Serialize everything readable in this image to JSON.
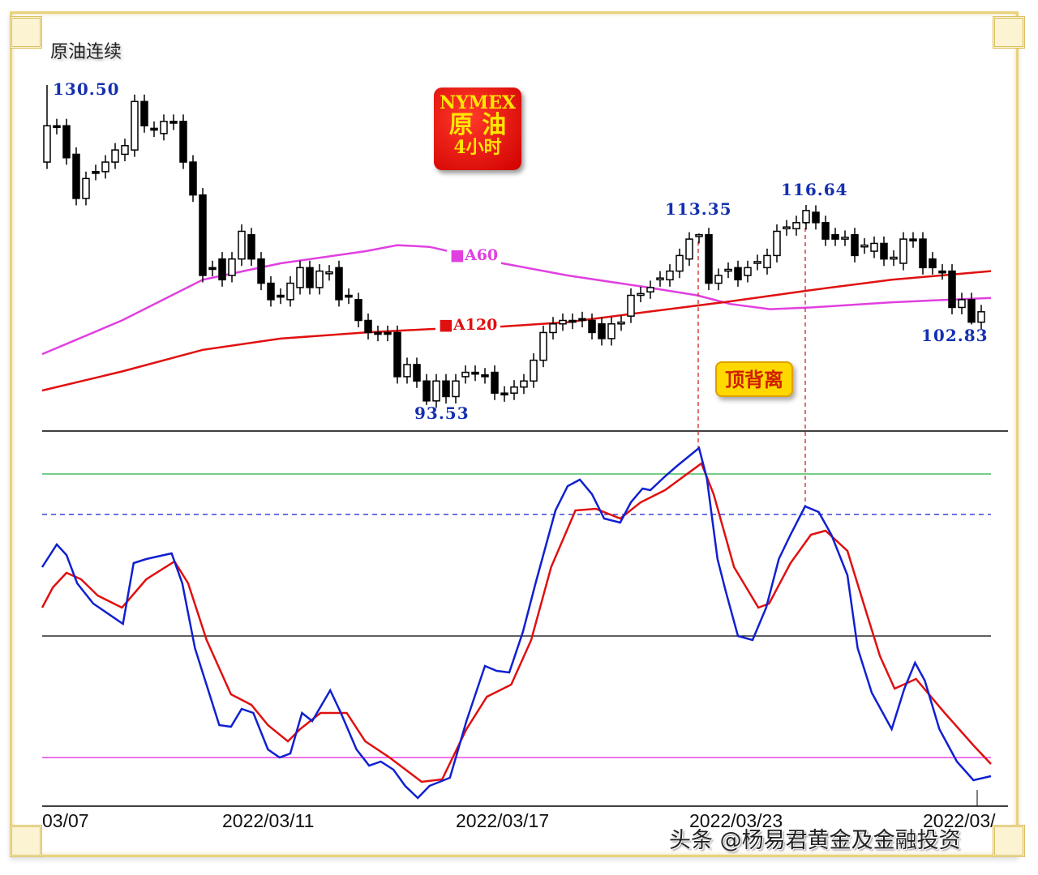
{
  "title": "原油连续",
  "badge": {
    "line1": "NYMEX",
    "line2": "原 油",
    "line3": "4小时",
    "color": "#e00000"
  },
  "annotation": "顶背离",
  "watermark": "头条 @杨易君黄金及金融投资",
  "colors": {
    "ma60": "#e040e0",
    "ma120": "#e01010",
    "fast": "#1020d0",
    "slow": "#e01010",
    "level90": "#20b040",
    "level80": "#1020d0",
    "level50": "#000000",
    "level20": "#e020e0",
    "divergence": "#d02020"
  },
  "chart_data": [
    {
      "type": "candlestick",
      "title": "原油连续",
      "x_ticks": [
        "03/07",
        "2022/03/11",
        "2022/03/17",
        "2022/03/23",
        "2022/03/"
      ],
      "candles_oc": [
        [
          121.6,
          125.8
        ],
        [
          125.8,
          125.6
        ],
        [
          125.8,
          122.1
        ],
        [
          122.5,
          117.4
        ],
        [
          117.4,
          119.7
        ],
        [
          120.5,
          120.3
        ],
        [
          120.5,
          121.6
        ],
        [
          121.6,
          123.0
        ],
        [
          122.5,
          123.5
        ],
        [
          123.0,
          128.6
        ],
        [
          128.6,
          125.8
        ],
        [
          125.5,
          125.3
        ],
        [
          124.9,
          126.3
        ],
        [
          126.3,
          126.1
        ],
        [
          126.3,
          121.6
        ],
        [
          121.6,
          117.8
        ],
        [
          117.8,
          108.5
        ],
        [
          109.4,
          109.2
        ],
        [
          110.4,
          108.0
        ],
        [
          108.5,
          110.4
        ],
        [
          110.4,
          113.6
        ],
        [
          113.2,
          110.4
        ],
        [
          110.4,
          107.6
        ],
        [
          107.6,
          105.7
        ],
        [
          106.2,
          106.0
        ],
        [
          105.7,
          107.6
        ],
        [
          107.1,
          109.4
        ],
        [
          109.4,
          107.1
        ],
        [
          107.1,
          109.0
        ],
        [
          108.7,
          108.9
        ],
        [
          109.4,
          105.7
        ],
        [
          106.2,
          106.0
        ],
        [
          105.7,
          103.3
        ],
        [
          103.3,
          101.9
        ],
        [
          101.9,
          101.7
        ],
        [
          101.9,
          101.7
        ],
        [
          101.9,
          96.8
        ],
        [
          96.8,
          98.2
        ],
        [
          98.2,
          96.3
        ],
        [
          96.3,
          94.0
        ],
        [
          94.0,
          96.3
        ],
        [
          96.3,
          94.5
        ],
        [
          94.5,
          96.3
        ],
        [
          96.8,
          97.3
        ],
        [
          97.3,
          97.1
        ],
        [
          97.0,
          96.8
        ],
        [
          97.3,
          94.9
        ],
        [
          94.9,
          94.7
        ],
        [
          94.9,
          95.6
        ],
        [
          95.6,
          96.3
        ],
        [
          96.3,
          98.7
        ],
        [
          98.7,
          101.9
        ],
        [
          101.9,
          102.9
        ],
        [
          102.9,
          103.3
        ],
        [
          103.3,
          103.1
        ],
        [
          103.5,
          103.3
        ],
        [
          103.3,
          101.9
        ],
        [
          102.9,
          101.2
        ],
        [
          101.2,
          102.9
        ],
        [
          102.9,
          103.1
        ],
        [
          103.8,
          106.2
        ],
        [
          106.2,
          106.4
        ],
        [
          106.6,
          107.1
        ],
        [
          108.0,
          108.2
        ],
        [
          108.0,
          109.0
        ],
        [
          109.0,
          110.8
        ],
        [
          110.4,
          112.7
        ],
        [
          113.0,
          113.2
        ],
        [
          113.2,
          107.6
        ],
        [
          107.6,
          108.5
        ],
        [
          109.0,
          109.2
        ],
        [
          109.4,
          108.0
        ],
        [
          108.5,
          109.4
        ],
        [
          109.9,
          110.1
        ],
        [
          109.4,
          110.8
        ],
        [
          110.8,
          113.6
        ],
        [
          113.9,
          114.1
        ],
        [
          113.9,
          114.6
        ],
        [
          114.6,
          116.0
        ],
        [
          115.8,
          114.6
        ],
        [
          114.6,
          112.7
        ],
        [
          113.2,
          112.7
        ],
        [
          112.7,
          112.9
        ],
        [
          113.2,
          110.8
        ],
        [
          111.8,
          112.0
        ],
        [
          111.3,
          112.2
        ],
        [
          112.2,
          110.4
        ],
        [
          110.4,
          110.6
        ],
        [
          109.9,
          112.7
        ],
        [
          112.7,
          112.5
        ],
        [
          112.7,
          109.4
        ],
        [
          110.4,
          109.4
        ],
        [
          109.0,
          108.8
        ],
        [
          109.0,
          104.8
        ],
        [
          104.8,
          105.7
        ],
        [
          105.7,
          103.1
        ],
        [
          103.1,
          104.3
        ]
      ],
      "extremes": [
        {
          "index": 0,
          "kind": "high",
          "value": 130.5,
          "label": "130.50"
        },
        {
          "index": 39,
          "kind": "low",
          "value": 93.53,
          "label": "93.53"
        },
        {
          "index": 67,
          "kind": "high",
          "value": 113.35,
          "label": "113.35"
        },
        {
          "index": 78,
          "kind": "high",
          "value": 116.64,
          "label": "116.64"
        },
        {
          "index": 95,
          "kind": "low",
          "value": 102.83,
          "label": "102.83"
        }
      ],
      "moving_averages": [
        {
          "name": "■A60",
          "points": [
            [
              -0.5,
              99.4
            ],
            [
              7.7,
              103.3
            ],
            [
              16,
              108.0
            ],
            [
              24,
              109.9
            ],
            [
              32.7,
              111.3
            ],
            [
              36,
              112.0
            ],
            [
              39.3,
              111.8
            ],
            [
              46.8,
              109.9
            ],
            [
              53.5,
              108.5
            ],
            [
              61.8,
              107.1
            ],
            [
              66.8,
              106.2
            ],
            [
              70.2,
              105.2
            ],
            [
              74.3,
              104.6
            ],
            [
              78.5,
              104.8
            ],
            [
              86.8,
              105.4
            ],
            [
              97,
              105.9
            ]
          ]
        },
        {
          "name": "■A120",
          "points": [
            [
              -0.5,
              95.2
            ],
            [
              7.7,
              97.4
            ],
            [
              16,
              99.9
            ],
            [
              24,
              101.2
            ],
            [
              32.7,
              101.9
            ],
            [
              39.3,
              102.3
            ],
            [
              46.8,
              102.6
            ],
            [
              53.5,
              103.1
            ],
            [
              61.8,
              104.3
            ],
            [
              70.2,
              105.5
            ],
            [
              78.5,
              106.8
            ],
            [
              86.8,
              108.0
            ],
            [
              97,
              109.0
            ]
          ]
        }
      ],
      "divergence_indices": [
        67,
        78
      ]
    },
    {
      "type": "line",
      "levels": [
        90,
        80,
        50,
        20
      ],
      "ylim": [
        8,
        100
      ],
      "series": [
        {
          "points": [
            [
              -0.5,
              67
            ],
            [
              1,
              72.6
            ],
            [
              2,
              70
            ],
            [
              3.1,
              63
            ],
            [
              4.75,
              58
            ],
            [
              7.8,
              53
            ],
            [
              8.9,
              68
            ],
            [
              10.2,
              69
            ],
            [
              12.8,
              70.4
            ],
            [
              13.9,
              63
            ],
            [
              15.2,
              47
            ],
            [
              17.7,
              28
            ],
            [
              18.9,
              27.6
            ],
            [
              20,
              32
            ],
            [
              21.2,
              31
            ],
            [
              22.7,
              22
            ],
            [
              23.9,
              20
            ],
            [
              25,
              21
            ],
            [
              26.2,
              31
            ],
            [
              27.25,
              29
            ],
            [
              29.1,
              36.6
            ],
            [
              30.2,
              31
            ],
            [
              31.8,
              22
            ],
            [
              33.1,
              18
            ],
            [
              34.3,
              19
            ],
            [
              35.6,
              17
            ],
            [
              36.8,
              13
            ],
            [
              38.1,
              10
            ],
            [
              39.3,
              13
            ],
            [
              41.4,
              15
            ],
            [
              43.1,
              29
            ],
            [
              45,
              42.6
            ],
            [
              46.2,
              41.4
            ],
            [
              47.5,
              41
            ],
            [
              48.9,
              51
            ],
            [
              50.2,
              63
            ],
            [
              52.25,
              81
            ],
            [
              53.5,
              87
            ],
            [
              54.75,
              88.6
            ],
            [
              56,
              85
            ],
            [
              57.25,
              79
            ],
            [
              58.9,
              78
            ],
            [
              60,
              83
            ],
            [
              61.2,
              86.4
            ],
            [
              62,
              86
            ],
            [
              63.5,
              89.4
            ],
            [
              64.75,
              92
            ],
            [
              67,
              96.4
            ],
            [
              67.8,
              89
            ],
            [
              68.9,
              69
            ],
            [
              69.75,
              61
            ],
            [
              71,
              50
            ],
            [
              72.5,
              49
            ],
            [
              73.9,
              57
            ],
            [
              75.2,
              69
            ],
            [
              76.4,
              75
            ],
            [
              77.9,
              82
            ],
            [
              79.3,
              80.6
            ],
            [
              80.6,
              75
            ],
            [
              82.25,
              65
            ],
            [
              83.3,
              47
            ],
            [
              84.75,
              36
            ],
            [
              86.8,
              27
            ],
            [
              88.1,
              37
            ],
            [
              89.2,
              43.4
            ],
            [
              90.2,
              39
            ],
            [
              91.7,
              27
            ],
            [
              93.5,
              19
            ],
            [
              95.2,
              14.4
            ],
            [
              97,
              15.4
            ]
          ]
        },
        {
          "points": [
            [
              -0.5,
              57
            ],
            [
              0.6,
              62
            ],
            [
              2,
              65.6
            ],
            [
              3.5,
              64
            ],
            [
              5.2,
              60
            ],
            [
              7.7,
              57
            ],
            [
              10.2,
              64
            ],
            [
              13.1,
              68.4
            ],
            [
              14.5,
              63
            ],
            [
              16.4,
              49
            ],
            [
              18.9,
              35.6
            ],
            [
              21,
              33
            ],
            [
              22.7,
              28
            ],
            [
              24.75,
              24
            ],
            [
              26,
              27
            ],
            [
              28.1,
              31
            ],
            [
              30.8,
              31
            ],
            [
              32.7,
              24
            ],
            [
              35.2,
              20
            ],
            [
              38.5,
              14
            ],
            [
              40.6,
              14.6
            ],
            [
              43.1,
              27
            ],
            [
              45.2,
              35
            ],
            [
              47.7,
              38
            ],
            [
              49.75,
              49
            ],
            [
              51.8,
              67
            ],
            [
              54.3,
              81
            ],
            [
              56.4,
              81.4
            ],
            [
              58.9,
              79
            ],
            [
              61,
              83
            ],
            [
              63.5,
              86
            ],
            [
              67.25,
              92.6
            ],
            [
              68.5,
              85
            ],
            [
              70.6,
              67
            ],
            [
              73.1,
              57
            ],
            [
              74.2,
              58
            ],
            [
              76.4,
              68
            ],
            [
              78.5,
              75
            ],
            [
              80,
              76
            ],
            [
              82.25,
              71
            ],
            [
              84.3,
              55
            ],
            [
              85.6,
              45
            ],
            [
              87.1,
              37
            ],
            [
              89.3,
              39.4
            ],
            [
              92.25,
              31
            ],
            [
              95.2,
              23
            ],
            [
              97,
              18.4
            ]
          ]
        }
      ]
    }
  ]
}
